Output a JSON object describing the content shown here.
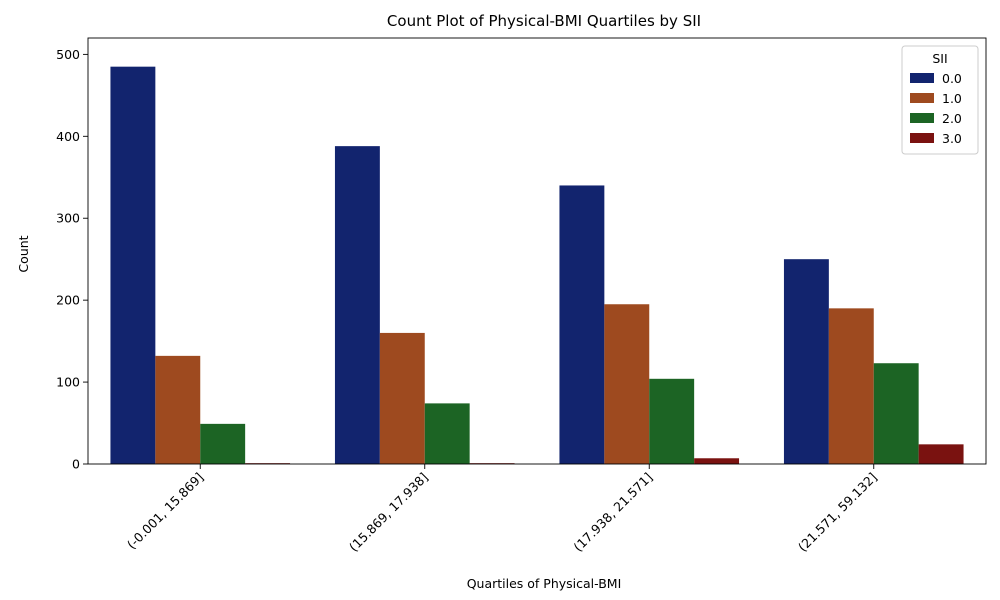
{
  "chart_data": {
    "type": "bar",
    "title": "Count Plot of Physical-BMI Quartiles by SII",
    "xlabel": "Quartiles of Physical-BMI",
    "ylabel": "Count",
    "categories": [
      "(-0.001, 15.869]",
      "(15.869, 17.938]",
      "(17.938, 21.571]",
      "(21.571, 59.132]"
    ],
    "ylim": [
      0,
      520
    ],
    "yticks": [
      0,
      100,
      200,
      300,
      400,
      500
    ],
    "grid": false,
    "legend_title": "SII",
    "legend_position": "top-right",
    "series": [
      {
        "name": "0.0",
        "color": "#12246e",
        "values": [
          485,
          388,
          340,
          250
        ]
      },
      {
        "name": "1.0",
        "color": "#9e4a1f",
        "values": [
          132,
          160,
          195,
          190
        ]
      },
      {
        "name": "2.0",
        "color": "#1c6424",
        "values": [
          49,
          74,
          104,
          123
        ]
      },
      {
        "name": "3.0",
        "color": "#7a1210",
        "values": [
          1,
          1,
          7,
          24
        ]
      }
    ]
  }
}
